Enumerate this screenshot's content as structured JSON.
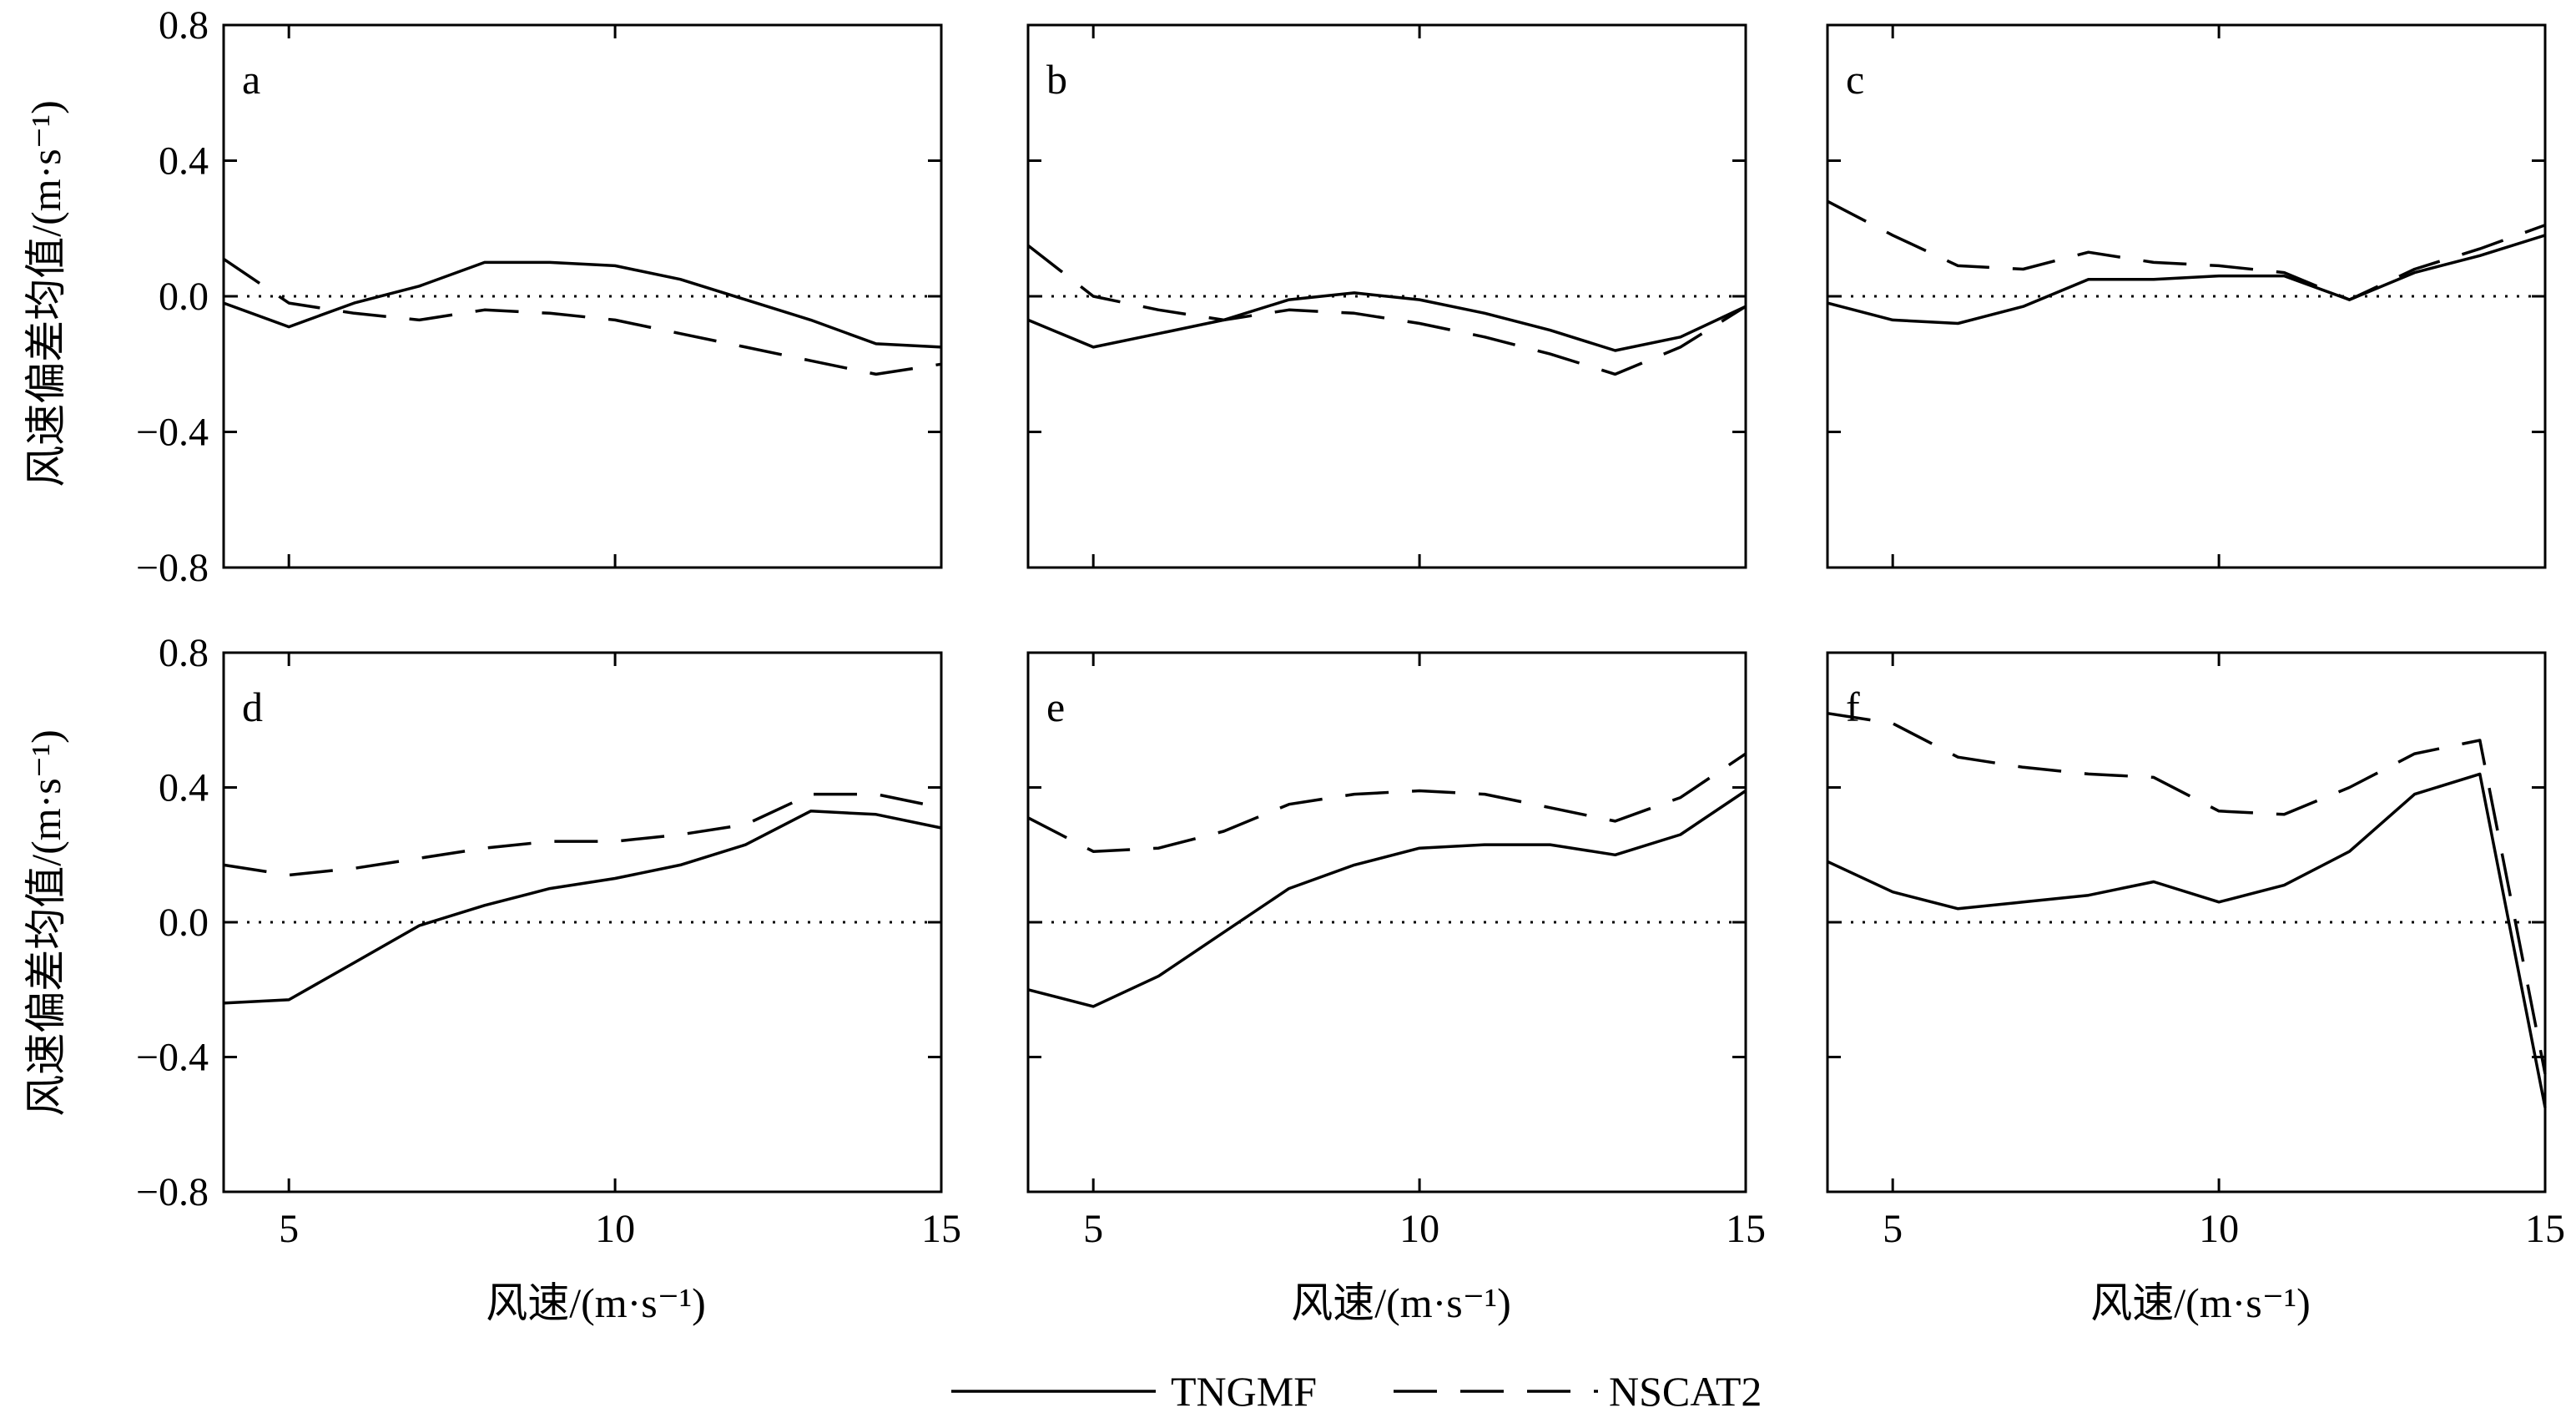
{
  "figure": {
    "ylabel": "风速偏差均值/(m·s⁻¹)",
    "xlabel": "风速/(m·s⁻¹)",
    "legend": {
      "placement": "bottom-center",
      "entries": [
        {
          "name": "TNGMF",
          "style": "solid"
        },
        {
          "name": "NSCAT2",
          "style": "dashed"
        }
      ]
    },
    "colors": {
      "lines": "#000000",
      "background": "#ffffff"
    }
  },
  "chart_data": [
    {
      "type": "line",
      "panel": "a",
      "xlim": [
        4,
        15
      ],
      "ylim": [
        -0.8,
        0.8
      ],
      "xticks": [
        "5",
        "10",
        "15"
      ],
      "yticks": [
        "0.8",
        "0.4",
        "0.0",
        "−0.4",
        "−0.8"
      ],
      "reference_line": {
        "y": 0.0,
        "style": "dotted"
      },
      "series": [
        {
          "name": "TNGMF",
          "style": "solid",
          "x": [
            4,
            5,
            6,
            7,
            8,
            9,
            10,
            11,
            12,
            13,
            14,
            15
          ],
          "y": [
            -0.02,
            -0.09,
            -0.02,
            0.03,
            0.1,
            0.1,
            0.09,
            0.05,
            -0.01,
            -0.07,
            -0.14,
            -0.15
          ]
        },
        {
          "name": "NSCAT2",
          "style": "dashed",
          "x": [
            4,
            5,
            6,
            7,
            8,
            9,
            10,
            11,
            12,
            13,
            14,
            15
          ],
          "y": [
            0.11,
            -0.02,
            -0.05,
            -0.07,
            -0.04,
            -0.05,
            -0.07,
            -0.11,
            -0.15,
            -0.19,
            -0.23,
            -0.2
          ]
        }
      ]
    },
    {
      "type": "line",
      "panel": "b",
      "xlim": [
        4,
        15
      ],
      "ylim": [
        -0.8,
        0.8
      ],
      "xticks": [
        "5",
        "10",
        "15"
      ],
      "yticks": [
        "0.8",
        "0.4",
        "0.0",
        "−0.4",
        "−0.8"
      ],
      "reference_line": {
        "y": 0.0,
        "style": "dotted"
      },
      "series": [
        {
          "name": "TNGMF",
          "style": "solid",
          "x": [
            4,
            5,
            6,
            7,
            8,
            9,
            10,
            11,
            12,
            13,
            14,
            15
          ],
          "y": [
            -0.07,
            -0.15,
            -0.11,
            -0.07,
            -0.01,
            0.01,
            -0.01,
            -0.05,
            -0.1,
            -0.16,
            -0.12,
            -0.03
          ]
        },
        {
          "name": "NSCAT2",
          "style": "dashed",
          "x": [
            4,
            5,
            6,
            7,
            8,
            9,
            10,
            11,
            12,
            13,
            14,
            15
          ],
          "y": [
            0.15,
            0.0,
            -0.04,
            -0.07,
            -0.04,
            -0.05,
            -0.08,
            -0.12,
            -0.17,
            -0.23,
            -0.15,
            -0.03
          ]
        }
      ]
    },
    {
      "type": "line",
      "panel": "c",
      "xlim": [
        4,
        15
      ],
      "ylim": [
        -0.8,
        0.8
      ],
      "xticks": [
        "5",
        "10",
        "15"
      ],
      "yticks": [
        "0.8",
        "0.4",
        "0.0",
        "−0.4",
        "−0.8"
      ],
      "reference_line": {
        "y": 0.0,
        "style": "dotted"
      },
      "series": [
        {
          "name": "TNGMF",
          "style": "solid",
          "x": [
            4,
            5,
            6,
            7,
            8,
            9,
            10,
            11,
            12,
            13,
            14,
            15
          ],
          "y": [
            -0.02,
            -0.07,
            -0.08,
            -0.03,
            0.05,
            0.05,
            0.06,
            0.06,
            -0.01,
            0.07,
            0.12,
            0.18
          ]
        },
        {
          "name": "NSCAT2",
          "style": "dashed",
          "x": [
            4,
            5,
            6,
            7,
            8,
            9,
            10,
            11,
            12,
            13,
            14,
            15
          ],
          "y": [
            0.28,
            0.18,
            0.09,
            0.08,
            0.13,
            0.1,
            0.09,
            0.07,
            -0.01,
            0.08,
            0.14,
            0.21
          ]
        }
      ]
    },
    {
      "type": "line",
      "panel": "d",
      "xlim": [
        4,
        15
      ],
      "ylim": [
        -0.8,
        0.8
      ],
      "xticks": [
        "5",
        "10",
        "15"
      ],
      "yticks": [
        "0.8",
        "0.4",
        "0.0",
        "−0.4",
        "−0.8"
      ],
      "reference_line": {
        "y": 0.0,
        "style": "dotted"
      },
      "series": [
        {
          "name": "TNGMF",
          "style": "solid",
          "x": [
            4,
            5,
            6,
            7,
            8,
            9,
            10,
            11,
            12,
            13,
            14,
            15
          ],
          "y": [
            -0.24,
            -0.23,
            -0.12,
            -0.01,
            0.05,
            0.1,
            0.13,
            0.17,
            0.23,
            0.33,
            0.32,
            0.28
          ]
        },
        {
          "name": "NSCAT2",
          "style": "dashed",
          "x": [
            4,
            5,
            6,
            7,
            8,
            9,
            10,
            11,
            12,
            13,
            14,
            15
          ],
          "y": [
            0.17,
            0.14,
            0.16,
            0.19,
            0.22,
            0.24,
            0.24,
            0.26,
            0.29,
            0.38,
            0.38,
            0.34
          ]
        }
      ]
    },
    {
      "type": "line",
      "panel": "e",
      "xlim": [
        4,
        15
      ],
      "ylim": [
        -0.8,
        0.8
      ],
      "xticks": [
        "5",
        "10",
        "15"
      ],
      "yticks": [
        "0.8",
        "0.4",
        "0.0",
        "−0.4",
        "−0.8"
      ],
      "reference_line": {
        "y": 0.0,
        "style": "dotted"
      },
      "series": [
        {
          "name": "TNGMF",
          "style": "solid",
          "x": [
            4,
            5,
            6,
            7,
            8,
            9,
            10,
            11,
            12,
            13,
            14,
            15
          ],
          "y": [
            -0.2,
            -0.25,
            -0.16,
            -0.03,
            0.1,
            0.17,
            0.22,
            0.23,
            0.23,
            0.2,
            0.26,
            0.39
          ]
        },
        {
          "name": "NSCAT2",
          "style": "dashed",
          "x": [
            4,
            5,
            6,
            7,
            8,
            9,
            10,
            11,
            12,
            13,
            14,
            15
          ],
          "y": [
            0.31,
            0.21,
            0.22,
            0.27,
            0.35,
            0.38,
            0.39,
            0.38,
            0.34,
            0.3,
            0.37,
            0.5
          ]
        }
      ]
    },
    {
      "type": "line",
      "panel": "f",
      "xlim": [
        4,
        15
      ],
      "ylim": [
        -0.8,
        0.8
      ],
      "xticks": [
        "5",
        "10",
        "15"
      ],
      "yticks": [
        "0.8",
        "0.4",
        "0.0",
        "−0.4",
        "−0.8"
      ],
      "reference_line": {
        "y": 0.0,
        "style": "dotted"
      },
      "series": [
        {
          "name": "TNGMF",
          "style": "solid",
          "x": [
            4,
            5,
            6,
            7,
            8,
            9,
            10,
            11,
            12,
            13,
            14,
            15
          ],
          "y": [
            0.18,
            0.09,
            0.04,
            0.06,
            0.08,
            0.12,
            0.06,
            0.11,
            0.21,
            0.38,
            0.44,
            -0.55
          ]
        },
        {
          "name": "NSCAT2",
          "style": "dashed",
          "x": [
            4,
            5,
            6,
            7,
            8,
            9,
            10,
            11,
            12,
            13,
            14,
            15
          ],
          "y": [
            0.62,
            0.59,
            0.49,
            0.46,
            0.44,
            0.43,
            0.33,
            0.32,
            0.4,
            0.5,
            0.54,
            -0.45
          ]
        }
      ]
    }
  ]
}
